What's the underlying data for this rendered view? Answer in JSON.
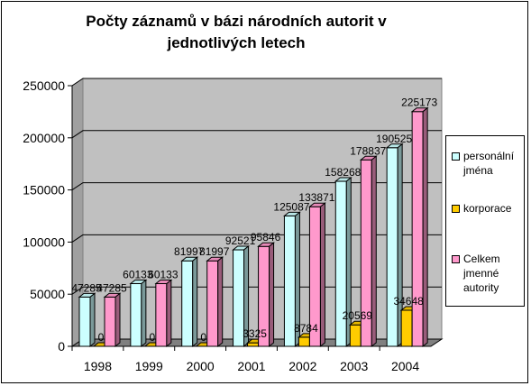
{
  "chart_data": {
    "type": "bar",
    "title": "Počty záznamů v bázi národních autorit v jednotlivých letech",
    "categories": [
      "1998",
      "1999",
      "2000",
      "2001",
      "2002",
      "2003",
      "2004"
    ],
    "series": [
      {
        "name": "personální jména",
        "color": "#ccffff",
        "values": [
          47285,
          60133,
          81997,
          92521,
          125087,
          158268,
          190525
        ]
      },
      {
        "name": "korporace",
        "color": "#ffcc00",
        "values": [
          0,
          0,
          0,
          3325,
          8784,
          20569,
          34648
        ]
      },
      {
        "name": "Celkem jmenné autority",
        "color": "#ff99cc",
        "values": [
          47285,
          60133,
          81997,
          95846,
          133871,
          178837,
          225173
        ]
      }
    ],
    "ylim": [
      0,
      250000
    ],
    "yticks": [
      0,
      50000,
      100000,
      150000,
      200000,
      250000
    ],
    "grid": true,
    "legend_position": "right",
    "wall_color": "#c0c0c0"
  }
}
